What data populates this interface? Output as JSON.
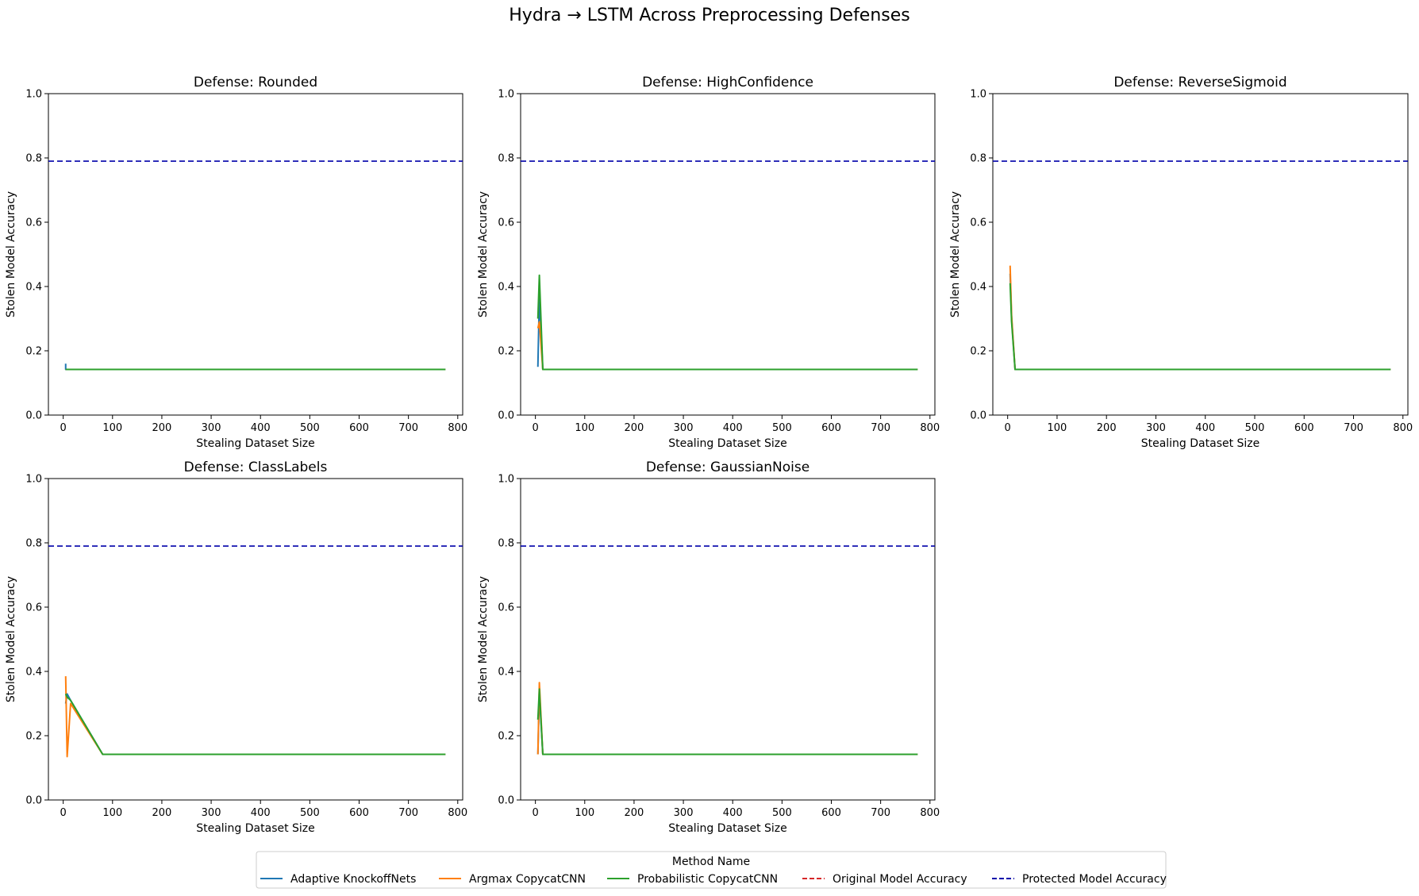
{
  "figure": {
    "title": "Hydra → LSTM Across Preprocessing Defenses"
  },
  "legend": {
    "title": "Method Name",
    "entries": [
      {
        "label": "Adaptive KnockoffNets",
        "color": "#1f77b4",
        "dashed": false
      },
      {
        "label": "Argmax CopycatCNN",
        "color": "#ff7f0e",
        "dashed": false
      },
      {
        "label": "Probabilistic CopycatCNN",
        "color": "#2ca02c",
        "dashed": false
      },
      {
        "label": "Original Model Accuracy",
        "color": "#d62728",
        "dashed": true
      },
      {
        "label": "Protected Model Accuracy",
        "color": "#0000aa",
        "dashed": true
      }
    ]
  },
  "chart_data": [
    {
      "type": "line",
      "title": "Defense: Rounded",
      "xlabel": "Stealing Dataset Size",
      "ylabel": "Stolen Model Accuracy",
      "xlim": [
        -30,
        810
      ],
      "ylim": [
        0,
        1
      ],
      "xticks": [
        0,
        100,
        200,
        300,
        400,
        500,
        600,
        700,
        800
      ],
      "yticks": [
        0.0,
        0.2,
        0.4,
        0.6,
        0.8,
        1.0
      ],
      "hlines": [
        {
          "name": "Protected Model Accuracy",
          "y": 0.79,
          "color": "#0000aa"
        }
      ],
      "series": [
        {
          "name": "Adaptive KnockoffNets",
          "color": "#1f77b4",
          "x": [
            5,
            5,
            8,
            15,
            30,
            775
          ],
          "y": [
            0.16,
            0.142,
            0.142,
            0.142,
            0.142,
            0.142
          ]
        },
        {
          "name": "Argmax CopycatCNN",
          "color": "#ff7f0e",
          "x": [
            5,
            8,
            15,
            30,
            775
          ],
          "y": [
            0.142,
            0.142,
            0.142,
            0.142,
            0.142
          ]
        },
        {
          "name": "Probabilistic CopycatCNN",
          "color": "#2ca02c",
          "x": [
            5,
            8,
            15,
            30,
            775
          ],
          "y": [
            0.142,
            0.142,
            0.142,
            0.142,
            0.142
          ]
        }
      ]
    },
    {
      "type": "line",
      "title": "Defense: HighConfidence",
      "xlabel": "Stealing Dataset Size",
      "ylabel": "Stolen Model Accuracy",
      "xlim": [
        -30,
        810
      ],
      "ylim": [
        0,
        1
      ],
      "xticks": [
        0,
        100,
        200,
        300,
        400,
        500,
        600,
        700,
        800
      ],
      "yticks": [
        0.0,
        0.2,
        0.4,
        0.6,
        0.8,
        1.0
      ],
      "hlines": [
        {
          "name": "Protected Model Accuracy",
          "y": 0.79,
          "color": "#0000aa"
        }
      ],
      "series": [
        {
          "name": "Adaptive KnockoffNets",
          "color": "#1f77b4",
          "x": [
            5,
            8,
            15,
            30,
            775
          ],
          "y": [
            0.15,
            0.37,
            0.142,
            0.142,
            0.142
          ]
        },
        {
          "name": "Argmax CopycatCNN",
          "color": "#ff7f0e",
          "x": [
            5,
            8,
            15,
            30,
            775
          ],
          "y": [
            0.27,
            0.29,
            0.142,
            0.142,
            0.142
          ]
        },
        {
          "name": "Probabilistic CopycatCNN",
          "color": "#2ca02c",
          "x": [
            5,
            8,
            15,
            30,
            775
          ],
          "y": [
            0.3,
            0.435,
            0.142,
            0.142,
            0.142
          ]
        }
      ]
    },
    {
      "type": "line",
      "title": "Defense: ReverseSigmoid",
      "xlabel": "Stealing Dataset Size",
      "ylabel": "Stolen Model Accuracy",
      "xlim": [
        -30,
        810
      ],
      "ylim": [
        0,
        1
      ],
      "xticks": [
        0,
        100,
        200,
        300,
        400,
        500,
        600,
        700,
        800
      ],
      "yticks": [
        0.0,
        0.2,
        0.4,
        0.6,
        0.8,
        1.0
      ],
      "hlines": [
        {
          "name": "Protected Model Accuracy",
          "y": 0.79,
          "color": "#0000aa"
        }
      ],
      "series": [
        {
          "name": "Adaptive KnockoffNets",
          "color": "#1f77b4",
          "x": [
            5,
            8,
            15,
            30,
            775
          ],
          "y": [
            0.44,
            0.3,
            0.142,
            0.142,
            0.142
          ]
        },
        {
          "name": "Argmax CopycatCNN",
          "color": "#ff7f0e",
          "x": [
            5,
            8,
            15,
            30,
            775
          ],
          "y": [
            0.465,
            0.31,
            0.142,
            0.142,
            0.142
          ]
        },
        {
          "name": "Probabilistic CopycatCNN",
          "color": "#2ca02c",
          "x": [
            5,
            8,
            15,
            30,
            775
          ],
          "y": [
            0.41,
            0.29,
            0.142,
            0.142,
            0.142
          ]
        }
      ]
    },
    {
      "type": "line",
      "title": "Defense: ClassLabels",
      "xlabel": "Stealing Dataset Size",
      "ylabel": "Stolen Model Accuracy",
      "xlim": [
        -30,
        810
      ],
      "ylim": [
        0,
        1
      ],
      "xticks": [
        0,
        100,
        200,
        300,
        400,
        500,
        600,
        700,
        800
      ],
      "yticks": [
        0.0,
        0.2,
        0.4,
        0.6,
        0.8,
        1.0
      ],
      "hlines": [
        {
          "name": "Protected Model Accuracy",
          "y": 0.79,
          "color": "#0000aa"
        }
      ],
      "series": [
        {
          "name": "Adaptive KnockoffNets",
          "color": "#1f77b4",
          "x": [
            5,
            8,
            15,
            80,
            775
          ],
          "y": [
            0.3,
            0.33,
            0.31,
            0.142,
            0.142
          ]
        },
        {
          "name": "Argmax CopycatCNN",
          "color": "#ff7f0e",
          "x": [
            5,
            8,
            15,
            80,
            775
          ],
          "y": [
            0.385,
            0.135,
            0.3,
            0.142,
            0.142
          ]
        },
        {
          "name": "Probabilistic CopycatCNN",
          "color": "#2ca02c",
          "x": [
            5,
            8,
            15,
            80,
            775
          ],
          "y": [
            0.33,
            0.32,
            0.31,
            0.142,
            0.142
          ]
        }
      ]
    },
    {
      "type": "line",
      "title": "Defense: GaussianNoise",
      "xlabel": "Stealing Dataset Size",
      "ylabel": "Stolen Model Accuracy",
      "xlim": [
        -30,
        810
      ],
      "ylim": [
        0,
        1
      ],
      "xticks": [
        0,
        100,
        200,
        300,
        400,
        500,
        600,
        700,
        800
      ],
      "yticks": [
        0.0,
        0.2,
        0.4,
        0.6,
        0.8,
        1.0
      ],
      "hlines": [
        {
          "name": "Protected Model Accuracy",
          "y": 0.79,
          "color": "#0000aa"
        }
      ],
      "series": [
        {
          "name": "Adaptive KnockoffNets",
          "color": "#1f77b4",
          "x": [
            5,
            8,
            15,
            30,
            775
          ],
          "y": [
            0.142,
            0.33,
            0.142,
            0.142,
            0.142
          ]
        },
        {
          "name": "Argmax CopycatCNN",
          "color": "#ff7f0e",
          "x": [
            5,
            8,
            15,
            30,
            775
          ],
          "y": [
            0.142,
            0.365,
            0.142,
            0.142,
            0.142
          ]
        },
        {
          "name": "Probabilistic CopycatCNN",
          "color": "#2ca02c",
          "x": [
            5,
            8,
            15,
            30,
            775
          ],
          "y": [
            0.25,
            0.345,
            0.142,
            0.142,
            0.142
          ]
        }
      ]
    }
  ]
}
